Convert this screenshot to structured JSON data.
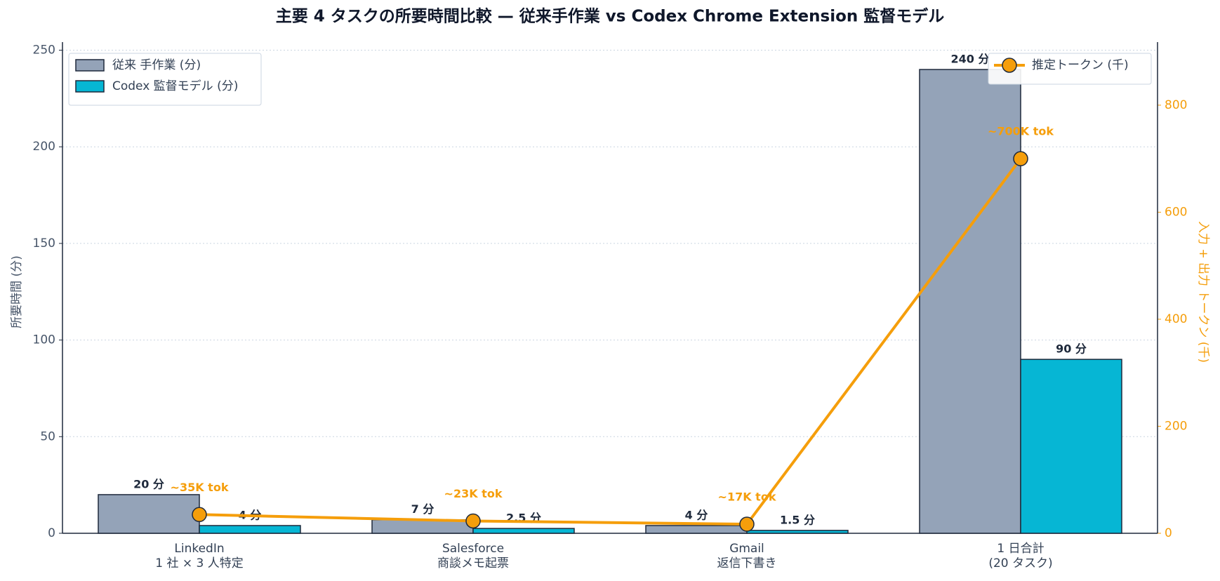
{
  "chart_data": {
    "type": "bar_line",
    "title": "主要 4 タスクの所要時間比較 — 従来手作業 vs Codex Chrome Extension 監督モデル",
    "y_label": "所要時間 (分)",
    "y2_label": "入力 + 出力 トークン (千)",
    "categories": [
      [
        "LinkedIn",
        "1 社 × 3 人特定"
      ],
      [
        "Salesforce",
        "商談メモ起票"
      ],
      [
        "Gmail",
        "返信下書き"
      ],
      [
        "1 日合計",
        "(20 タスク)"
      ]
    ],
    "series": [
      {
        "name": "従来 手作業 (分)",
        "type": "bar",
        "color": "#94a3b8",
        "values": [
          20,
          7,
          4,
          240
        ],
        "value_labels": [
          "20 分",
          "7 分",
          "4 分",
          "240 分"
        ]
      },
      {
        "name": "Codex 監督モデル (分)",
        "type": "bar",
        "color": "#06b6d4",
        "values": [
          4,
          2.5,
          1.5,
          90
        ],
        "value_labels": [
          "4 分",
          "2.5 分",
          "1.5 分",
          "90 分"
        ]
      },
      {
        "name": "推定トークン (千)",
        "type": "line",
        "axis": "y2",
        "color": "#f59e0b",
        "values": [
          35,
          23,
          17,
          700
        ],
        "value_labels": [
          "~35K tok",
          "~23K tok",
          "~17K tok",
          "~700K tok"
        ]
      }
    ],
    "ylim": [
      0,
      252
    ],
    "yticks": [
      0,
      50,
      100,
      150,
      200,
      250
    ],
    "y2lim": [
      0,
      910
    ],
    "y2ticks": [
      0,
      200,
      400,
      600,
      800
    ],
    "grid": true,
    "legend": "upper left",
    "legend2": "upper right"
  }
}
